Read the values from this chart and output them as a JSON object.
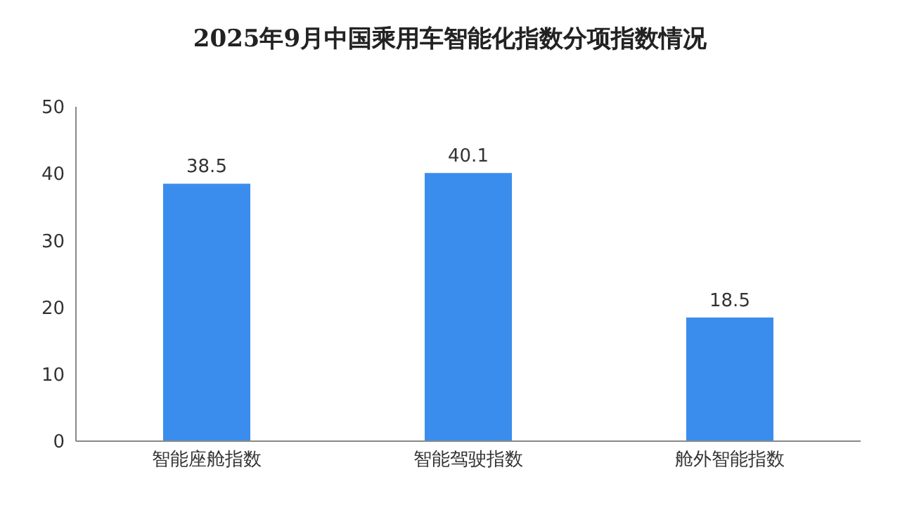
{
  "chart_data": {
    "type": "bar",
    "title": "2025年9月中国乘用车智能化指数分项指数情况",
    "categories": [
      "智能座舱指数",
      "智能驾驶指数",
      "舱外智能指数"
    ],
    "values": [
      38.5,
      40.1,
      18.5
    ],
    "color": "#3b8ded",
    "ylim": [
      0,
      50
    ],
    "yticks": [
      0,
      10,
      20,
      30,
      40,
      50
    ],
    "grid": false,
    "data_labels": true
  }
}
